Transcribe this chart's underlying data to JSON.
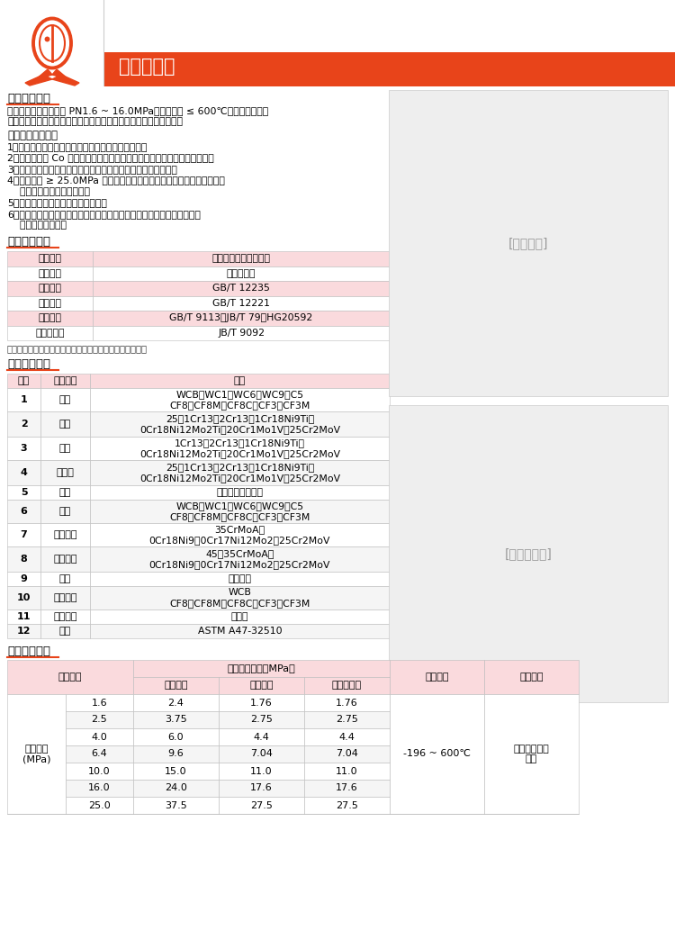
{
  "title": "法兰截止阀",
  "bg_color": "#FFFFFF",
  "header_orange": "#E8441A",
  "header_light": "#F0B090",
  "table_header_bg": "#F5C6C6",
  "table_pink_bg": "#FADADD",
  "product_struct_title": "产品结构特点",
  "product_desc1": "截止阀适用于公称压力 PN1.6 ~ 16.0MPa，工作温度 ≤ 600℃的石油、化工、",
  "product_desc2": "制药、化肥、电力行业等各种工况的管路上，切断或接通管路介质。",
  "features_title": "其主要结构特点：",
  "features": [
    "1、产品结构合理、密封可靠、性能优良、造型美观。",
    "2、密封面堆焊 Co 基硬质合金，耐磨、耐蚀、抗擦伤性能好，使用寿命长。",
    "3、阀杆经调质及表面氮化处理，有良好的抗腐蚀性及抗擦伤性。",
    "4、公称压力 ≥ 25.0MPa 中腔采用自紧密封式结构，密封性能随压力升高",
    "    而增强，保证了密封性能。",
    "5、阀门设有倒密封结构，密封可靠。",
    "6、零件材质及法兰、对焊端尺寸可根据实际工况或用户要求合理选配，满",
    "    足各种工程需要。"
  ],
  "standards_title": "产品采用标准",
  "standards_rows": [
    [
      "结构形式",
      "栓接阀盖明杆支架结构"
    ],
    [
      "驱动方式",
      "手动、电动"
    ],
    [
      "设计标准",
      "GB/T 12235"
    ],
    [
      "结构长度",
      "GB/T 12221"
    ],
    [
      "连接法兰",
      "GB/T 9113、JB/T 79、HG20592"
    ],
    [
      "试验和检验",
      "JB/T 9092"
    ]
  ],
  "standards_note": "注：阀门连接法兰及对焊端尺寸可根据用户要求设计制造。",
  "parts_title": "主要零件材料",
  "parts_headers": [
    "序号",
    "零件名称",
    "材质"
  ],
  "parts_rows": [
    [
      "1",
      "阀体",
      "WCB、WC1、WC6、WC9、C5\nCF8、CF8M、CF8C、CF3、CF3M"
    ],
    [
      "2",
      "阀瓣",
      "25、1Cr13、2Cr13、1Cr18Ni9Ti、\n0Cr18Ni12Mo2Ti、20Cr1Mo1V、25Cr2MoV"
    ],
    [
      "3",
      "阀杆",
      "1Cr13、2Cr13、1Cr18Ni9Ti、\n0Cr18Ni12Mo2Ti、20Cr1Mo1V、25Cr2MoV"
    ],
    [
      "4",
      "阀瓣盖",
      "25、1Cr13、2Cr13、1Cr18Ni9Ti、\n0Cr18Ni12Mo2Ti、20Cr1Mo1V、25Cr2MoV"
    ],
    [
      "5",
      "垫片",
      "柔性石墨＋不锈钢"
    ],
    [
      "6",
      "阀盖",
      "WCB、WC1、WC6、WC9、C5\nCF8、CF8M、CF8C、CF3、CF3M"
    ],
    [
      "7",
      "双头螺柱",
      "35CrMoA、\n0Cr18Ni9、0Cr17Ni12Mo2、25Cr2MoV"
    ],
    [
      "8",
      "六角螺母",
      "45、35CrMoA、\n0Cr18Ni9、0Cr17Ni12Mo2、25Cr2MoV"
    ],
    [
      "9",
      "填料",
      "柔性石墨"
    ],
    [
      "10",
      "填料压盖",
      "WCB\nCF8、CF8M、CF8C、CF3、CF3M"
    ],
    [
      "11",
      "阀杆螺母",
      "铜合金"
    ],
    [
      "12",
      "手轮",
      "ASTM A47-32510"
    ]
  ],
  "perf_title": "产品性能规范",
  "perf_sub_headers": [
    "壳体试验",
    "密封试验",
    "上密封试验"
  ],
  "pressure_levels": [
    "1.6",
    "2.5",
    "4.0",
    "6.4",
    "10.0",
    "16.0",
    "25.0"
  ],
  "shell_test": [
    "2.4",
    "3.75",
    "6.0",
    "9.6",
    "15.0",
    "24.0",
    "37.5"
  ],
  "seal_test": [
    "1.76",
    "2.75",
    "4.4",
    "7.04",
    "11.0",
    "17.6",
    "27.5"
  ],
  "upper_seal_test": [
    "1.76",
    "2.75",
    "4.4",
    "7.04",
    "11.0",
    "17.6",
    "27.5"
  ],
  "temp_range": "-196 ~ 600℃",
  "medium": "水、油品、蒸\n汽等",
  "nominal_pressure_label": "公称压力\n(MPa)"
}
